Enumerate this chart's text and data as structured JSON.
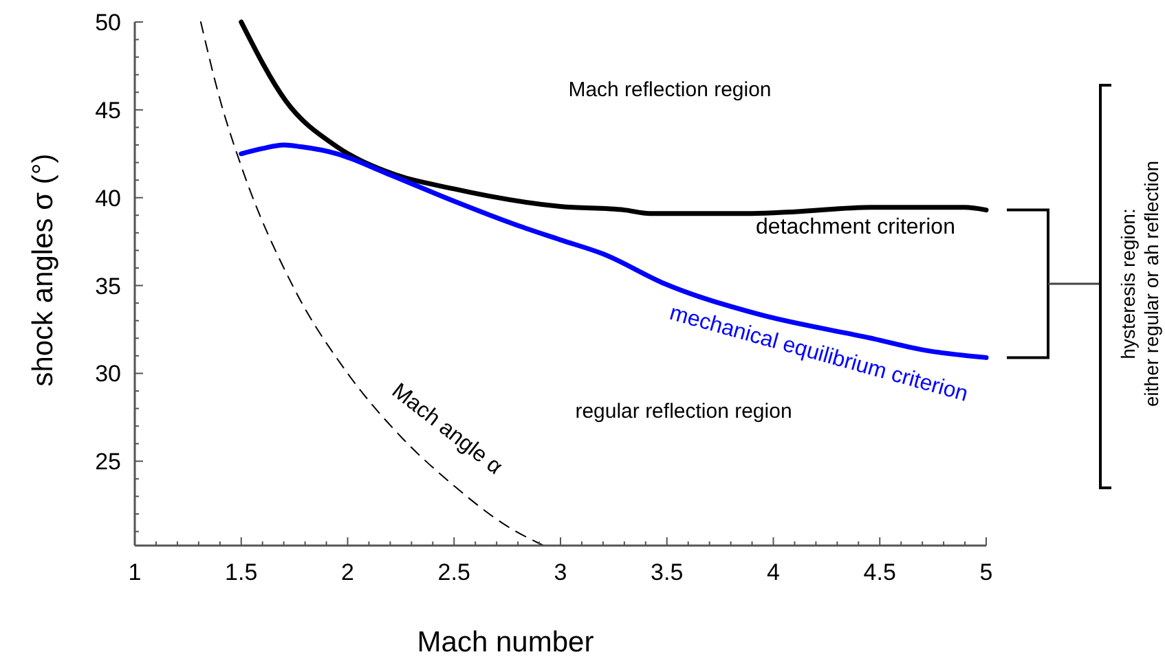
{
  "chart_data": {
    "type": "line",
    "xlabel": "Mach number",
    "ylabel": "shock angles σ (°)",
    "xlim": [
      1,
      5
    ],
    "ylim": [
      20.2,
      50
    ],
    "xticks": [
      1,
      {
        "value": 1.1,
        "label": null
      },
      {
        "value": 1.2,
        "label": null
      },
      {
        "value": 1.3,
        "label": null
      },
      {
        "value": 1.4,
        "label": null
      },
      1.5,
      {
        "value": 1.6,
        "label": null
      },
      {
        "value": 1.7,
        "label": null
      },
      {
        "value": 1.8,
        "label": null
      },
      {
        "value": 1.9,
        "label": null
      },
      2,
      {
        "value": 2.1,
        "label": null
      },
      {
        "value": 2.2,
        "label": null
      },
      {
        "value": 2.3,
        "label": null
      },
      {
        "value": 2.4,
        "label": null
      },
      2.5,
      {
        "value": 2.6,
        "label": null
      },
      {
        "value": 2.7,
        "label": null
      },
      {
        "value": 2.8,
        "label": null
      },
      {
        "value": 2.9,
        "label": null
      },
      3,
      {
        "value": 3.1,
        "label": null
      },
      {
        "value": 3.2,
        "label": null
      },
      {
        "value": 3.3,
        "label": null
      },
      {
        "value": 3.4,
        "label": null
      },
      3.5,
      {
        "value": 3.6,
        "label": null
      },
      {
        "value": 3.7,
        "label": null
      },
      {
        "value": 3.8,
        "label": null
      },
      {
        "value": 3.9,
        "label": null
      },
      4,
      {
        "value": 4.1,
        "label": null
      },
      {
        "value": 4.2,
        "label": null
      },
      {
        "value": 4.3,
        "label": null
      },
      {
        "value": 4.4,
        "label": null
      },
      4.5,
      {
        "value": 4.6,
        "label": null
      },
      {
        "value": 4.7,
        "label": null
      },
      {
        "value": 4.8,
        "label": null
      },
      {
        "value": 4.9,
        "label": null
      },
      5
    ],
    "yticks": [
      {
        "value": 21,
        "label": null
      },
      {
        "value": 22,
        "label": null
      },
      {
        "value": 23,
        "label": null
      },
      {
        "value": 24,
        "label": null
      },
      25,
      {
        "value": 26,
        "label": null
      },
      {
        "value": 27,
        "label": null
      },
      {
        "value": 28,
        "label": null
      },
      {
        "value": 29,
        "label": null
      },
      30,
      {
        "value": 31,
        "label": null
      },
      {
        "value": 32,
        "label": null
      },
      {
        "value": 33,
        "label": null
      },
      {
        "value": 34,
        "label": null
      },
      35,
      {
        "value": 36,
        "label": null
      },
      {
        "value": 37,
        "label": null
      },
      {
        "value": 38,
        "label": null
      },
      {
        "value": 39,
        "label": null
      },
      40,
      {
        "value": 41,
        "label": null
      },
      {
        "value": 42,
        "label": null
      },
      {
        "value": 43,
        "label": null
      },
      {
        "value": 44,
        "label": null
      },
      45,
      {
        "value": 46,
        "label": null
      },
      {
        "value": 47,
        "label": null
      },
      {
        "value": 48,
        "label": null
      },
      {
        "value": 49,
        "label": null
      },
      50
    ],
    "grid": false,
    "series": [
      {
        "name": "detachment criterion",
        "color": "#000000",
        "x": [
          1.5,
          1.71,
          1.95,
          2.18,
          2.5,
          3.0,
          3.3,
          3.42,
          3.9,
          4.1,
          4.46,
          4.9,
          5.0
        ],
        "values": [
          50,
          45.5,
          42.9,
          41.5,
          40.5,
          39.5,
          39.3,
          39.1,
          39.1,
          39.2,
          39.45,
          39.45,
          39.3
        ]
      },
      {
        "name": "mechanical equilibrium criterion",
        "color": "#0000ff",
        "x": [
          1.5,
          1.6,
          1.7,
          1.78,
          1.95,
          2.18,
          2.5,
          2.78,
          3.0,
          3.2,
          3.49,
          3.92,
          4.46,
          4.72,
          5.0
        ],
        "values": [
          42.5,
          42.8,
          43.0,
          42.9,
          42.5,
          41.4,
          39.8,
          38.5,
          37.6,
          36.8,
          35.1,
          33.4,
          32.0,
          31.3,
          30.9
        ]
      },
      {
        "name": "Mach angle α",
        "color": "#000000",
        "line_style": "dashed",
        "x": [
          1.31,
          1.4,
          1.5,
          1.75,
          2.0,
          2.25,
          2.5,
          2.75,
          2.92
        ],
        "values": [
          50,
          45.6,
          41.8,
          34.8,
          30,
          26.4,
          23.6,
          21.3,
          20.2
        ]
      }
    ],
    "annotations": [
      "Mach reflection region",
      "regular reflection region",
      "hysteresis region:\neither regular or ah reflection"
    ]
  }
}
